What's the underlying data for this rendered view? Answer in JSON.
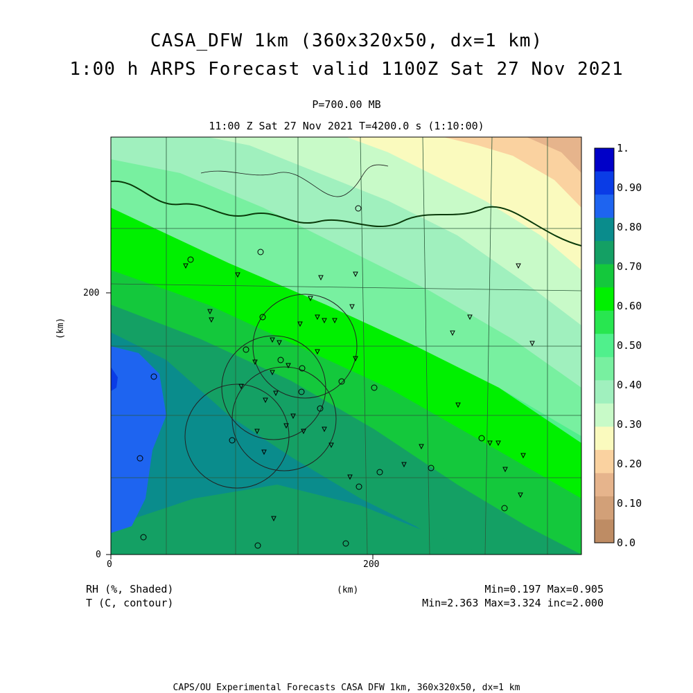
{
  "header": {
    "title_line1": "CASA_DFW 1km (360x320x50, dx=1 km)",
    "title_line2": "1:00 h ARPS Forecast valid 1100Z Sat 27 Nov 2021",
    "level": "P=700.00 MB",
    "time_info": "11:00 Z Sat 27 Nov 2021   T=4200.0 s (1:10:00)"
  },
  "axes": {
    "y_label": "(km)",
    "x_label": "(km)",
    "x_ticks": [
      "0",
      "200"
    ],
    "y_ticks": [
      "0",
      "200"
    ]
  },
  "colorbar": {
    "labels": [
      "1.",
      "0.90",
      "0.80",
      "0.70",
      "0.60",
      "0.50",
      "0.40",
      "0.30",
      "0.20",
      "0.10",
      "0.0"
    ],
    "colors": [
      "#0000c8",
      "#0a3ce6",
      "#1e64f0",
      "#0a8c8c",
      "#14a064",
      "#14c83c",
      "#00f000",
      "#28e650",
      "#50f08c",
      "#78f0a0",
      "#a0f0be",
      "#c8fac8",
      "#fafabe",
      "#fad2a0",
      "#e6b48c",
      "#d2a078",
      "#be8c64"
    ]
  },
  "legend": {
    "field1": "RH (%, Shaded)",
    "field2": "T (C, contour)",
    "stats1": "Min=0.197 Max=0.905",
    "stats2": "Min=2.363 Max=3.324 inc=2.000"
  },
  "footer": {
    "credit": "CAPS/OU Experimental Forecasts  CASA DFW 1km, 360x320x50, dx=1 km"
  }
}
